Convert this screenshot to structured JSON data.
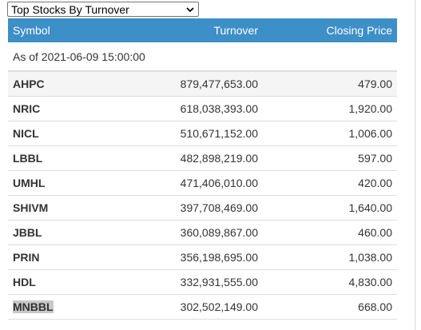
{
  "selector": {
    "value": "Top Stocks By Turnover",
    "options_visible": [
      "Top Stocks By Turnover"
    ]
  },
  "table": {
    "headers": {
      "symbol": "Symbol",
      "turnover": "Turnover",
      "closing_price": "Closing Price"
    },
    "as_of": "As of 2021-06-09 15:00:00",
    "rows": [
      {
        "symbol": "AHPC",
        "turnover": "879,477,653.00",
        "closing_price": "479.00"
      },
      {
        "symbol": "NRIC",
        "turnover": "618,038,393.00",
        "closing_price": "1,920.00"
      },
      {
        "symbol": "NICL",
        "turnover": "510,671,152.00",
        "closing_price": "1,006.00"
      },
      {
        "symbol": "LBBL",
        "turnover": "482,898,219.00",
        "closing_price": "597.00"
      },
      {
        "symbol": "UMHL",
        "turnover": "471,406,010.00",
        "closing_price": "420.00"
      },
      {
        "symbol": "SHIVM",
        "turnover": "397,708,469.00",
        "closing_price": "1,640.00"
      },
      {
        "symbol": "JBBL",
        "turnover": "360,089,867.00",
        "closing_price": "460.00"
      },
      {
        "symbol": "PRIN",
        "turnover": "356,198,695.00",
        "closing_price": "1,038.00"
      },
      {
        "symbol": "HDL",
        "turnover": "332,931,555.00",
        "closing_price": "4,830.00"
      },
      {
        "symbol": "MNBBL",
        "turnover": "302,502,149.00",
        "closing_price": "668.00"
      }
    ]
  },
  "colors": {
    "header_bg": "#3d8fc7",
    "header_text": "#ffffff",
    "row_border": "#dddddd",
    "highlight": "#c8c8c8"
  },
  "icons": {
    "dropdown": "chevron-down-icon"
  }
}
